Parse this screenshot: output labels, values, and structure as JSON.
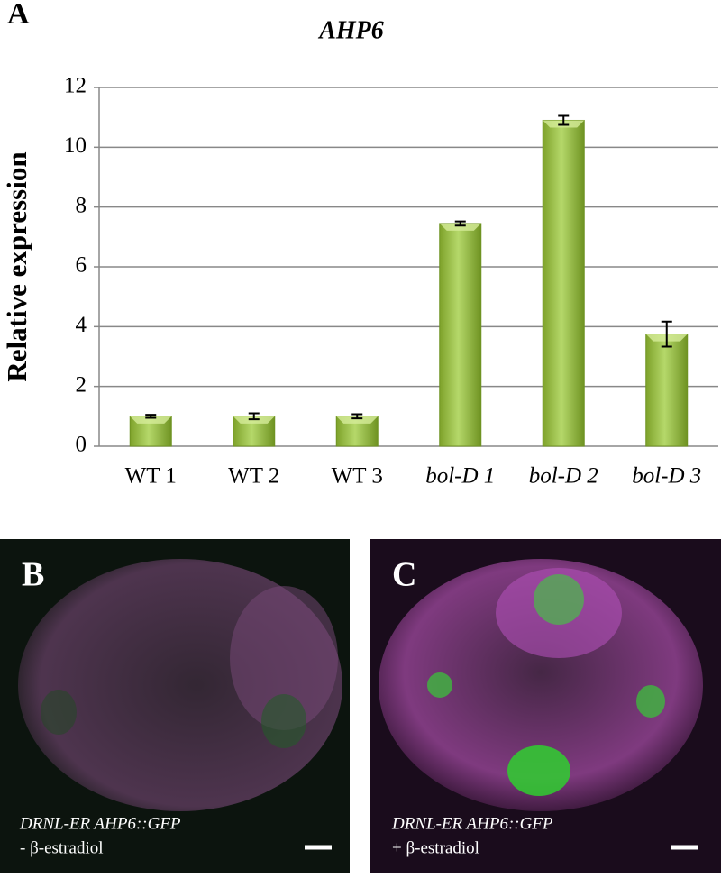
{
  "chart_data": {
    "type": "bar",
    "panel_label": "A",
    "title": "AHP6",
    "y_label": "Relative expression",
    "categories": [
      "WT 1",
      "WT 2",
      "WT 3",
      "bol-D 1",
      "bol-D 2",
      "bol-D 3"
    ],
    "italic_categories": [
      false,
      false,
      false,
      true,
      true,
      true
    ],
    "values": [
      1.0,
      1.0,
      1.0,
      7.45,
      10.9,
      3.75
    ],
    "errors": [
      0.05,
      0.1,
      0.07,
      0.07,
      0.15,
      0.42
    ],
    "color": "#9bc23c",
    "ylim": [
      0,
      12
    ],
    "yticks": [
      0,
      2,
      4,
      6,
      8,
      10,
      12
    ],
    "grid": true
  },
  "panels": [
    {
      "label": "B",
      "caption": "DRNL-ER AHP6::GFP",
      "treatment": "- β-estradiol"
    },
    {
      "label": "C",
      "caption": "DRNL-ER AHP6::GFP",
      "treatment": "+ β-estradiol"
    }
  ]
}
